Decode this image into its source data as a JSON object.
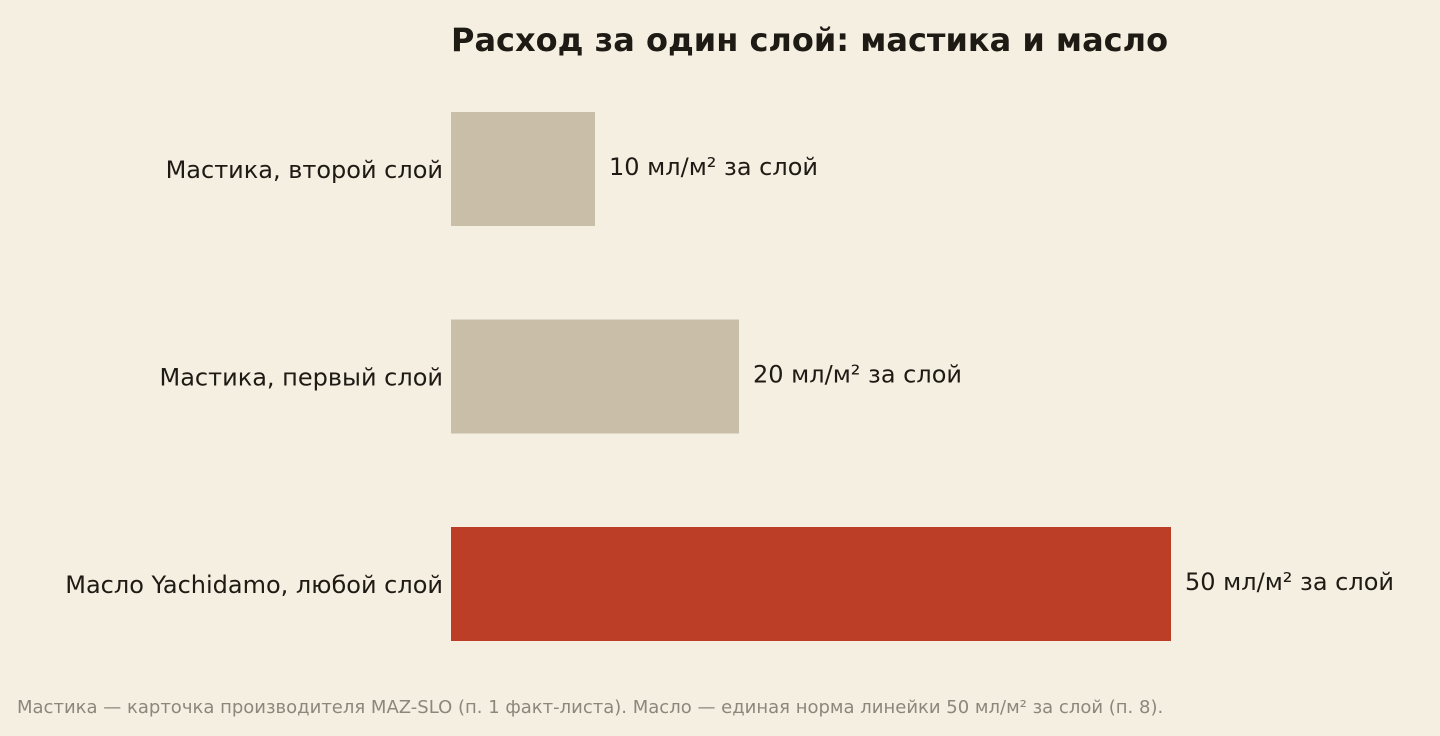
{
  "chart_data": {
    "type": "bar",
    "orientation": "horizontal",
    "title": "Расход за один слой: мастика и масло",
    "categories": [
      "Мастика, второй слой",
      "Мастика, первый слой",
      "Масло Yachidamo, любой слой"
    ],
    "values": [
      10,
      20,
      50
    ],
    "value_labels": [
      "10 мл/м² за слой",
      "20 мл/м² за слой",
      "50 мл/м² за слой"
    ],
    "bar_colors": [
      "#c9bfa9",
      "#c9bfa9",
      "#bd3e27"
    ],
    "unit": "мл/м² за слой",
    "xlim": [
      0,
      50
    ],
    "grid": false,
    "legend": "none"
  },
  "footnote": "Мастика — карточка производителя MAZ-SLO (п. 1 факт-листа). Масло — единая норма линейки 50 мл/м² за слой (п. 8).",
  "colors": {
    "background": "#f5efe2",
    "text": "#1e1a14",
    "muted_text": "#8c867c",
    "bar_neutral": "#c9bfa9",
    "bar_accent": "#bd3e27"
  }
}
